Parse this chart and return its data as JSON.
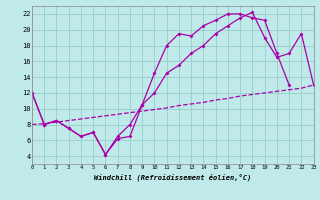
{
  "bg_color": "#c0eaea",
  "grid_color": "#99cccc",
  "line_color": "#aa00aa",
  "xlabel": "Windchill (Refroidissement éolien,°C)",
  "xlim": [
    0,
    23
  ],
  "ylim": [
    3,
    23
  ],
  "xticks": [
    0,
    1,
    2,
    3,
    4,
    5,
    6,
    7,
    8,
    9,
    10,
    11,
    12,
    13,
    14,
    15,
    16,
    17,
    18,
    19,
    20,
    21,
    22,
    23
  ],
  "yticks": [
    4,
    6,
    8,
    10,
    12,
    14,
    16,
    18,
    20,
    22
  ],
  "curve1_x": [
    0,
    1,
    2,
    3,
    4,
    5,
    6,
    7,
    8,
    9,
    10,
    11,
    12,
    13,
    14,
    15,
    16,
    17,
    18,
    19,
    20,
    21
  ],
  "curve1_y": [
    12,
    8,
    8.5,
    7.5,
    6.5,
    7.0,
    4.2,
    6.2,
    6.5,
    10.5,
    14.5,
    18.0,
    19.5,
    19.2,
    20.5,
    21.2,
    22.0,
    22.0,
    21.5,
    21.2,
    17.0,
    13.0
  ],
  "curve2_x": [
    0,
    1,
    2,
    3,
    4,
    5,
    6,
    7,
    8,
    9,
    10,
    11,
    12,
    13,
    14,
    15,
    16,
    17,
    18,
    19,
    20,
    21,
    22,
    23
  ],
  "curve2_y": [
    12,
    8,
    8.5,
    7.5,
    6.5,
    7.0,
    4.2,
    6.5,
    8.0,
    10.5,
    12.0,
    14.5,
    15.5,
    17.0,
    18.0,
    19.5,
    20.5,
    21.5,
    22.2,
    19.0,
    16.5,
    17.0,
    19.5,
    13.0
  ],
  "curve3_x": [
    0,
    1,
    2,
    3,
    4,
    5,
    6,
    7,
    8,
    9,
    10,
    11,
    12,
    13,
    14,
    15,
    16,
    17,
    18,
    19,
    20,
    21,
    22,
    23
  ],
  "curve3_y": [
    8.0,
    8.1,
    8.3,
    8.5,
    8.7,
    8.9,
    9.1,
    9.3,
    9.5,
    9.7,
    9.9,
    10.1,
    10.4,
    10.6,
    10.8,
    11.1,
    11.3,
    11.6,
    11.8,
    12.0,
    12.2,
    12.4,
    12.6,
    13.0
  ]
}
